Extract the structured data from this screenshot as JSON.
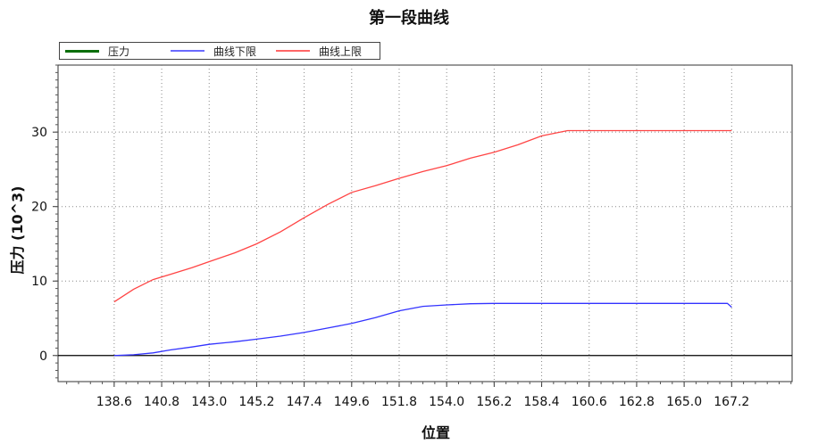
{
  "chart_data": {
    "type": "line",
    "title": "第一段曲线",
    "xlabel": "位置",
    "ylabel": "压力 (10^3)",
    "xlim": [
      136.0,
      170.0
    ],
    "ylim": [
      -3.5,
      39.0
    ],
    "x_ticks": [
      "138.6",
      "140.8",
      "143.0",
      "145.2",
      "147.4",
      "149.6",
      "151.8",
      "154.0",
      "156.2",
      "158.4",
      "160.6",
      "162.8",
      "165.0",
      "167.2"
    ],
    "y_ticks": [
      "0",
      "10",
      "20",
      "30"
    ],
    "grid": true,
    "legend_position": "top-left",
    "series": [
      {
        "name": "压力",
        "color": "#0a6e0a",
        "x": [],
        "y": []
      },
      {
        "name": "曲线下限",
        "color": "#3333ff",
        "x": [
          138.6,
          139.5,
          140.4,
          141.2,
          142.2,
          143.0,
          144.2,
          145.2,
          146.3,
          147.4,
          148.5,
          149.6,
          150.7,
          151.8,
          152.9,
          154.0,
          155.1,
          156.2,
          157.3,
          158.4,
          160.6,
          162.8,
          165.0,
          167.0,
          167.2
        ],
        "y": [
          0.0,
          0.1,
          0.35,
          0.75,
          1.15,
          1.5,
          1.85,
          2.2,
          2.6,
          3.1,
          3.7,
          4.3,
          5.1,
          6.0,
          6.6,
          6.8,
          6.95,
          7.0,
          7.0,
          7.0,
          7.0,
          7.0,
          7.0,
          7.0,
          6.5
        ]
      },
      {
        "name": "曲线上限",
        "color": "#ff4444",
        "x": [
          138.6,
          139.5,
          140.4,
          141.2,
          142.2,
          143.0,
          144.2,
          145.2,
          146.3,
          147.4,
          148.5,
          149.6,
          150.7,
          151.8,
          152.9,
          154.0,
          155.1,
          156.2,
          157.3,
          158.4,
          159.6,
          160.6,
          162.8,
          165.0,
          167.2
        ],
        "y": [
          7.2,
          8.9,
          10.2,
          10.9,
          11.8,
          12.6,
          13.8,
          15.0,
          16.6,
          18.5,
          20.3,
          21.9,
          22.8,
          23.8,
          24.7,
          25.5,
          26.5,
          27.3,
          28.3,
          29.5,
          30.2,
          30.2,
          30.2,
          30.2,
          30.2
        ]
      }
    ]
  }
}
